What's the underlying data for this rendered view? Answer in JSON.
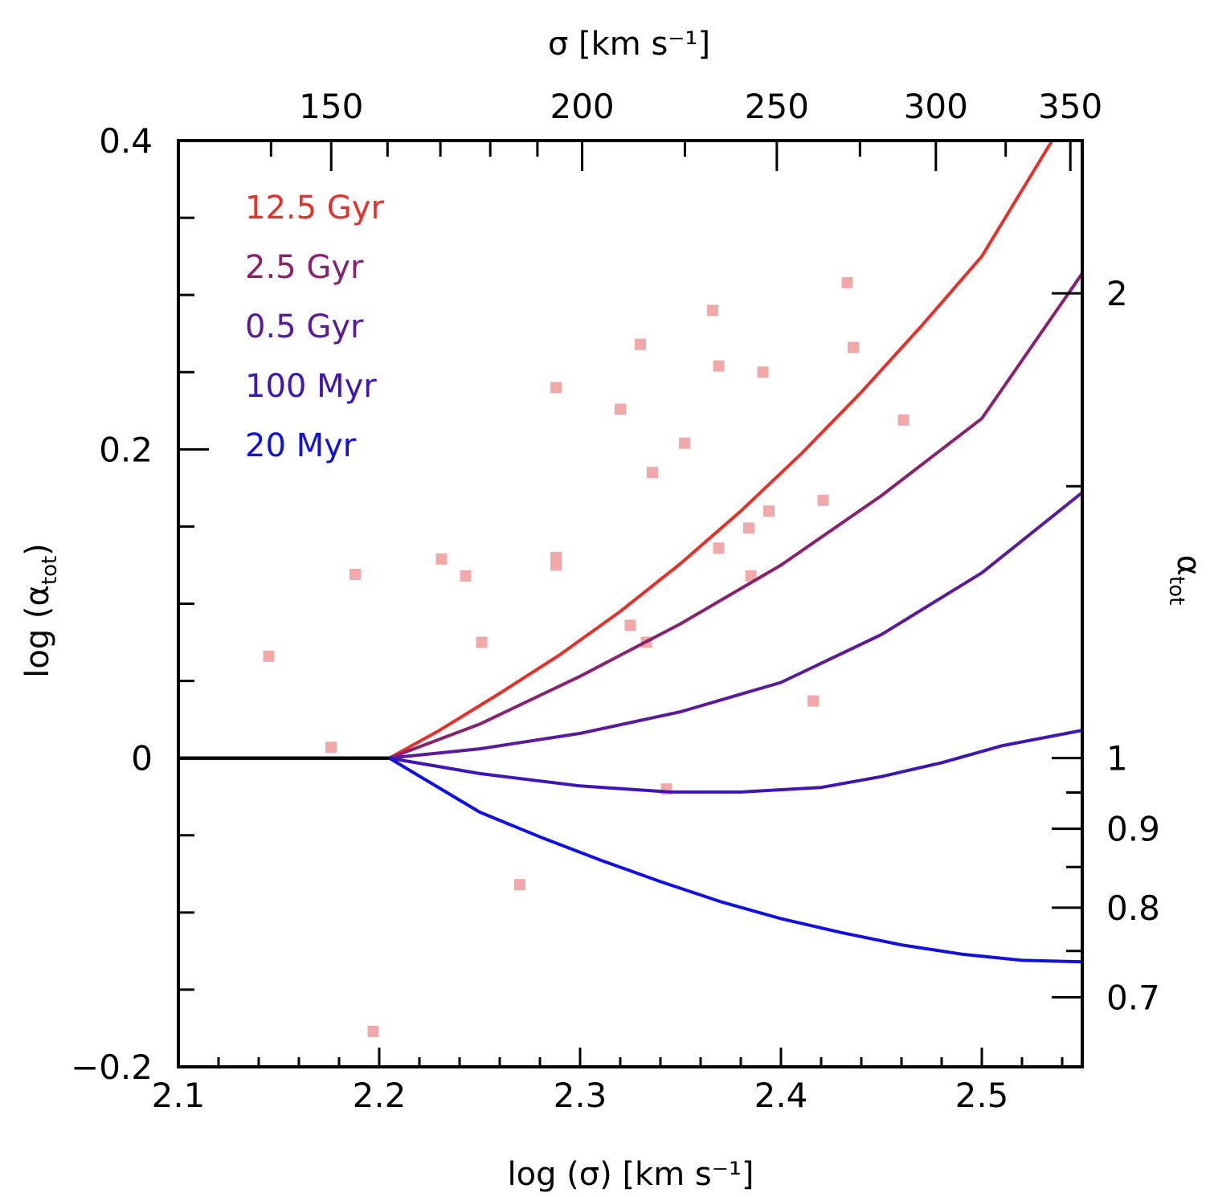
{
  "chart_data": {
    "type": "line",
    "xlabel": "log (σ)  [km s⁻¹]",
    "ylabel": "log (α_tot)",
    "ylabel_main": "log (α",
    "ylabel_sub": "tot",
    "ylabel_close": ")",
    "top_xlabel": "σ  [km s⁻¹]",
    "right_ylabel_main": "α",
    "right_ylabel_sub": "tot",
    "xlim": [
      2.1,
      2.55
    ],
    "ylim": [
      -0.2,
      0.4
    ],
    "x_ticks": [
      {
        "value": 2.1,
        "label": "2.1"
      },
      {
        "value": 2.2,
        "label": "2.2"
      },
      {
        "value": 2.3,
        "label": "2.3"
      },
      {
        "value": 2.4,
        "label": "2.4"
      },
      {
        "value": 2.5,
        "label": "2.5"
      }
    ],
    "y_ticks": [
      {
        "value": -0.2,
        "label": "−0.2"
      },
      {
        "value": 0,
        "label": "0"
      },
      {
        "value": 0.2,
        "label": "0.2"
      },
      {
        "value": 0.4,
        "label": "0.4"
      }
    ],
    "top_ticks": [
      {
        "value": 150,
        "label": "150"
      },
      {
        "value": 200,
        "label": "200"
      },
      {
        "value": 250,
        "label": "250"
      },
      {
        "value": 300,
        "label": "300"
      },
      {
        "value": 350,
        "label": "350"
      }
    ],
    "top_minor_ticks": [
      140,
      160,
      170,
      180,
      190,
      225,
      275,
      325
    ],
    "right_ticks": [
      {
        "value": 0.7,
        "label": "0.7"
      },
      {
        "value": 0.8,
        "label": "0.8"
      },
      {
        "value": 0.9,
        "label": "0.9"
      },
      {
        "value": 1,
        "label": "1"
      },
      {
        "value": 2,
        "label": "2"
      }
    ],
    "right_minor_ticks": [
      0.75,
      0.85,
      0.95,
      1.5
    ],
    "grid": false,
    "legend_position": "top-left",
    "series": [
      {
        "name": "12.5 Gyr",
        "color": "#e8302a",
        "x": [
          2.1,
          2.205,
          2.23,
          2.26,
          2.29,
          2.32,
          2.35,
          2.38,
          2.41,
          2.44,
          2.47,
          2.5,
          2.535
        ],
        "y": [
          0,
          0,
          0.018,
          0.042,
          0.067,
          0.095,
          0.126,
          0.16,
          0.197,
          0.237,
          0.28,
          0.325,
          0.4
        ]
      },
      {
        "name": "2.5 Gyr",
        "color": "#8a2070",
        "x": [
          2.1,
          2.205,
          2.25,
          2.3,
          2.35,
          2.4,
          2.45,
          2.5,
          2.55
        ],
        "y": [
          0,
          0,
          0.022,
          0.053,
          0.087,
          0.125,
          0.17,
          0.22,
          0.314
        ]
      },
      {
        "name": "0.5 Gyr",
        "color": "#5b1a9c",
        "x": [
          2.1,
          2.205,
          2.25,
          2.3,
          2.35,
          2.4,
          2.45,
          2.5,
          2.55
        ],
        "y": [
          0,
          0,
          0.006,
          0.016,
          0.03,
          0.049,
          0.08,
          0.12,
          0.172
        ]
      },
      {
        "name": "100 Myr",
        "color": "#3f15b8",
        "x": [
          2.1,
          2.205,
          2.25,
          2.3,
          2.345,
          2.38,
          2.42,
          2.45,
          2.48,
          2.51,
          2.55
        ],
        "y": [
          0,
          0,
          -0.01,
          -0.018,
          -0.022,
          -0.022,
          -0.019,
          -0.012,
          -0.003,
          0.008,
          0.018
        ]
      },
      {
        "name": "20 Myr",
        "color": "#1010e0",
        "x": [
          2.1,
          2.205,
          2.25,
          2.28,
          2.31,
          2.34,
          2.37,
          2.4,
          2.43,
          2.46,
          2.49,
          2.52,
          2.55
        ],
        "y": [
          0,
          0,
          -0.035,
          -0.051,
          -0.066,
          -0.08,
          -0.093,
          -0.104,
          -0.113,
          -0.121,
          -0.127,
          -0.131,
          -0.132
        ]
      }
    ],
    "scatter": {
      "color": "#f0a8a8",
      "points": [
        [
          2.145,
          0.066
        ],
        [
          2.176,
          0.007
        ],
        [
          2.188,
          0.119
        ],
        [
          2.197,
          -0.177
        ],
        [
          2.231,
          0.129
        ],
        [
          2.243,
          0.118
        ],
        [
          2.251,
          0.075
        ],
        [
          2.27,
          -0.082
        ],
        [
          2.288,
          0.24
        ],
        [
          2.288,
          0.13
        ],
        [
          2.288,
          0.125
        ],
        [
          2.32,
          0.226
        ],
        [
          2.325,
          0.086
        ],
        [
          2.33,
          0.268
        ],
        [
          2.333,
          0.075
        ],
        [
          2.336,
          0.185
        ],
        [
          2.343,
          -0.02
        ],
        [
          2.352,
          0.204
        ],
        [
          2.366,
          0.29
        ],
        [
          2.369,
          0.254
        ],
        [
          2.369,
          0.136
        ],
        [
          2.384,
          0.149
        ],
        [
          2.385,
          0.118
        ],
        [
          2.391,
          0.25
        ],
        [
          2.394,
          0.16
        ],
        [
          2.416,
          0.037
        ],
        [
          2.421,
          0.167
        ],
        [
          2.433,
          0.308
        ],
        [
          2.436,
          0.266
        ],
        [
          2.461,
          0.219
        ]
      ]
    }
  }
}
